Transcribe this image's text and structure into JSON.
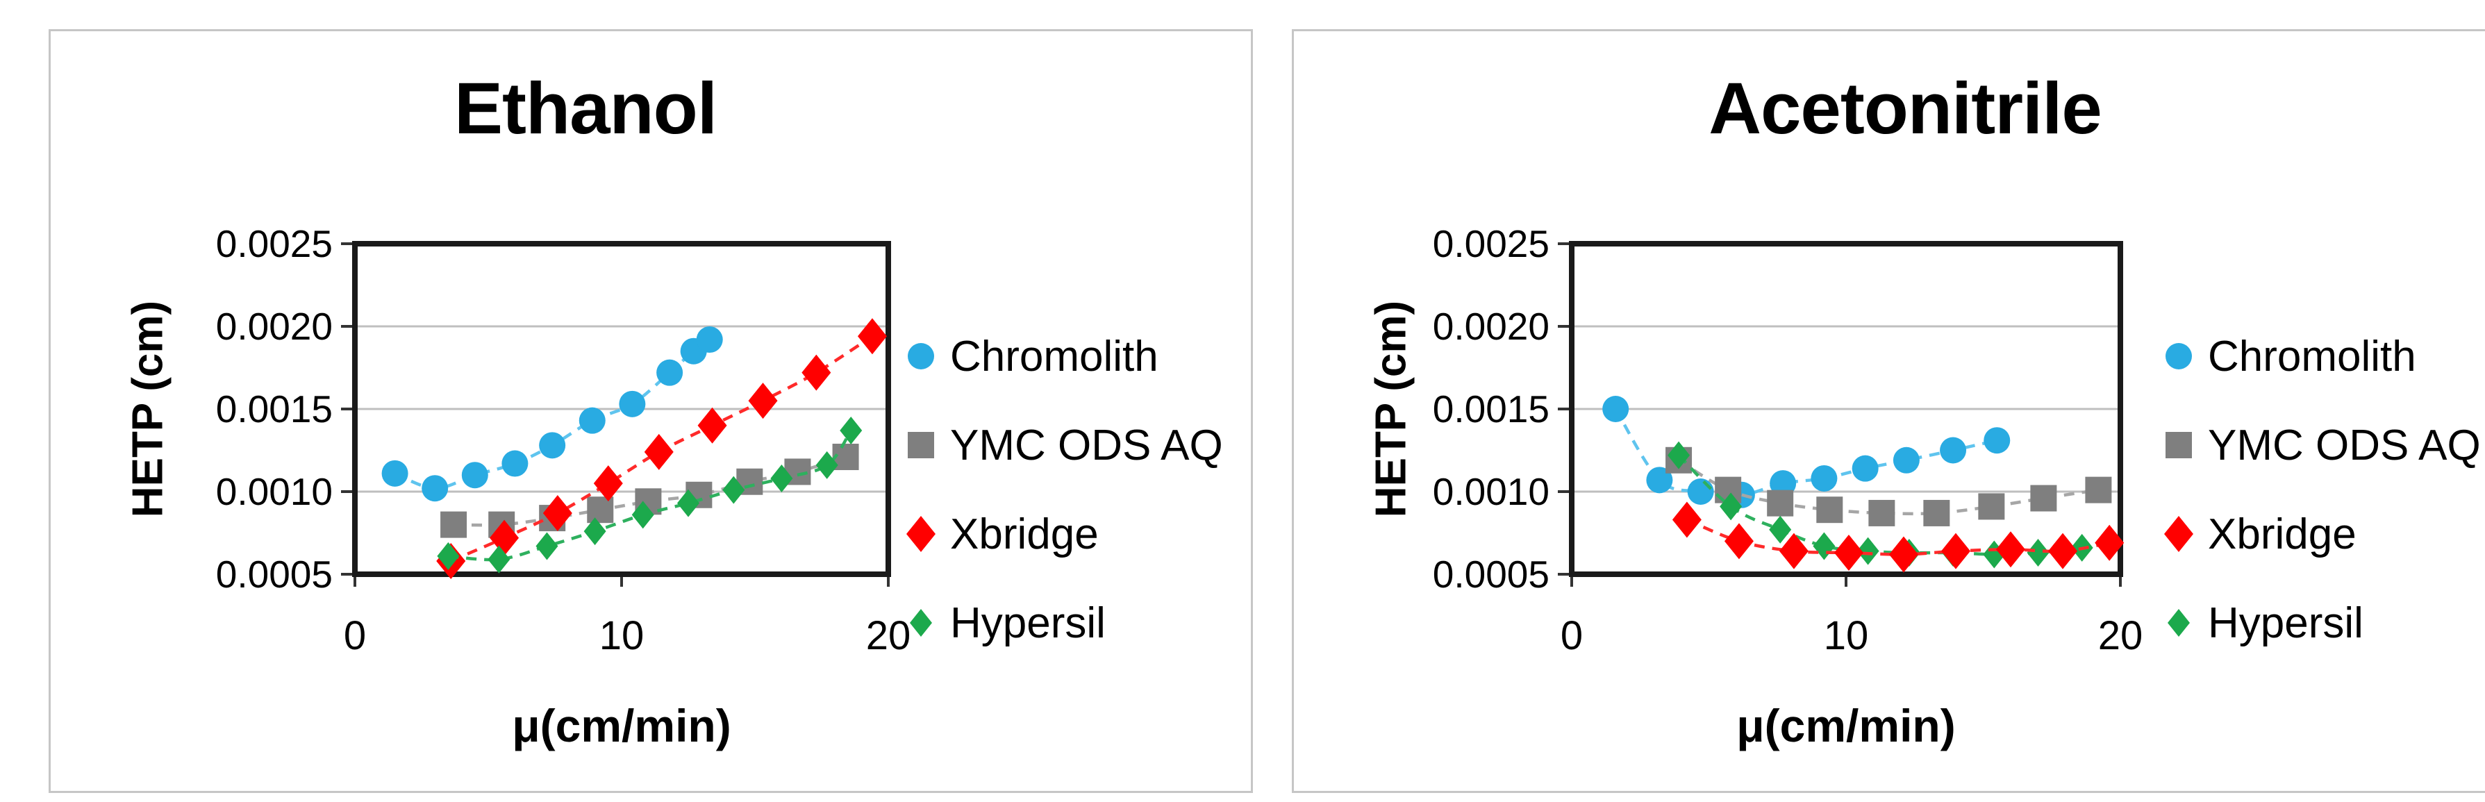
{
  "page": {
    "background": "#FFFFFF",
    "panel_border_color": "#C6C6C6",
    "plot_border_color": "#1A1A1A",
    "gridline_color": "#BFBFBF"
  },
  "chart_data": [
    {
      "type": "scatter",
      "title": "Ethanol",
      "xlabel": "μ(cm/min)",
      "ylabel": "HETP (cm)",
      "xlim": [
        0,
        20
      ],
      "ylim": [
        0.0005,
        0.0025
      ],
      "xticks": [
        {
          "v": 0,
          "label": "0"
        },
        {
          "v": 10,
          "label": "10"
        },
        {
          "v": 20,
          "label": "20"
        }
      ],
      "yticks": [
        {
          "v": 0.0005,
          "label": "0.0005"
        },
        {
          "v": 0.001,
          "label": "0.0010"
        },
        {
          "v": 0.0015,
          "label": "0.0015"
        },
        {
          "v": 0.002,
          "label": "0.0020"
        },
        {
          "v": 0.0025,
          "label": "0.0025"
        }
      ],
      "grid": "horizontal",
      "legend_position": "right",
      "series": [
        {
          "name": "Chromolith",
          "marker": "circle",
          "color": "#29ABE2",
          "line_color": "#5FC4EE",
          "line_style": "dashed",
          "points": [
            [
              1.5,
              0.00111
            ],
            [
              3.0,
              0.00102
            ],
            [
              4.5,
              0.0011
            ],
            [
              6.0,
              0.00117
            ],
            [
              7.4,
              0.00128
            ],
            [
              8.9,
              0.00143
            ],
            [
              10.4,
              0.00153
            ],
            [
              11.8,
              0.00172
            ],
            [
              12.7,
              0.00185
            ],
            [
              13.3,
              0.00192
            ]
          ]
        },
        {
          "name": "YMC ODS AQ",
          "marker": "square",
          "color": "#7F7F7F",
          "line_color": "#A6A6A6",
          "line_style": "dashed",
          "points": [
            [
              3.7,
              0.0008
            ],
            [
              5.5,
              0.0008
            ],
            [
              7.4,
              0.00084
            ],
            [
              9.2,
              0.00089
            ],
            [
              11.0,
              0.00094
            ],
            [
              12.9,
              0.00098
            ],
            [
              14.8,
              0.00106
            ],
            [
              16.6,
              0.00112
            ],
            [
              18.4,
              0.00121
            ]
          ]
        },
        {
          "name": "Xbridge",
          "marker": "diamond",
          "color": "#FF0000",
          "line_color": "#FF2A2A",
          "line_style": "dashed",
          "points": [
            [
              3.6,
              0.00058
            ],
            [
              5.6,
              0.00072
            ],
            [
              7.6,
              0.00087
            ],
            [
              9.5,
              0.00105
            ],
            [
              11.4,
              0.00124
            ],
            [
              13.4,
              0.0014
            ],
            [
              15.3,
              0.00155
            ],
            [
              17.3,
              0.00172
            ],
            [
              19.4,
              0.00194
            ]
          ]
        },
        {
          "name": "Hypersil",
          "marker": "diamond-small",
          "color": "#1CA94C",
          "line_color": "#2EB05E",
          "line_style": "dashed",
          "points": [
            [
              3.5,
              0.00061
            ],
            [
              5.4,
              0.00059
            ],
            [
              7.2,
              0.00067
            ],
            [
              9.0,
              0.00076
            ],
            [
              10.8,
              0.00086
            ],
            [
              12.5,
              0.00093
            ],
            [
              14.2,
              0.00101
            ],
            [
              16.0,
              0.00108
            ],
            [
              17.7,
              0.00116
            ],
            [
              18.6,
              0.00137
            ]
          ]
        }
      ]
    },
    {
      "type": "scatter",
      "title": "Acetonitrile",
      "xlabel": "μ(cm/min)",
      "ylabel": "HETP (cm)",
      "xlim": [
        0,
        20
      ],
      "ylim": [
        0.0005,
        0.0025
      ],
      "xticks": [
        {
          "v": 0,
          "label": "0"
        },
        {
          "v": 10,
          "label": "10"
        },
        {
          "v": 20,
          "label": "20"
        }
      ],
      "yticks": [
        {
          "v": 0.0005,
          "label": "0.0005"
        },
        {
          "v": 0.001,
          "label": "0.0010"
        },
        {
          "v": 0.0015,
          "label": "0.0015"
        },
        {
          "v": 0.002,
          "label": "0.0020"
        },
        {
          "v": 0.0025,
          "label": "0.0025"
        }
      ],
      "grid": "horizontal",
      "legend_position": "right",
      "series": [
        {
          "name": "Chromolith",
          "marker": "circle",
          "color": "#29ABE2",
          "line_color": "#5FC4EE",
          "line_style": "dashed",
          "points": [
            [
              1.6,
              0.0015
            ],
            [
              3.2,
              0.00107
            ],
            [
              4.7,
              0.001
            ],
            [
              6.2,
              0.00098
            ],
            [
              7.7,
              0.00105
            ],
            [
              9.2,
              0.00108
            ],
            [
              10.7,
              0.00114
            ],
            [
              12.2,
              0.00119
            ],
            [
              13.9,
              0.00125
            ],
            [
              15.5,
              0.00131
            ]
          ]
        },
        {
          "name": "YMC ODS AQ",
          "marker": "square",
          "color": "#7F7F7F",
          "line_color": "#A6A6A6",
          "line_style": "dashed",
          "points": [
            [
              3.9,
              0.00119
            ],
            [
              5.7,
              0.00101
            ],
            [
              7.6,
              0.00093
            ],
            [
              9.4,
              0.00089
            ],
            [
              11.3,
              0.00087
            ],
            [
              13.3,
              0.00087
            ],
            [
              15.3,
              0.00091
            ],
            [
              17.2,
              0.00096
            ],
            [
              19.2,
              0.00101
            ]
          ]
        },
        {
          "name": "Xbridge",
          "marker": "diamond",
          "color": "#FF0000",
          "line_color": "#FF2A2A",
          "line_style": "dashed",
          "points": [
            [
              4.2,
              0.00083
            ],
            [
              6.1,
              0.0007
            ],
            [
              8.1,
              0.00064
            ],
            [
              10.1,
              0.00063
            ],
            [
              12.1,
              0.00062
            ],
            [
              14.0,
              0.00064
            ],
            [
              16.0,
              0.00065
            ],
            [
              17.9,
              0.00064
            ],
            [
              19.6,
              0.00069
            ]
          ]
        },
        {
          "name": "Hypersil",
          "marker": "diamond-small",
          "color": "#1CA94C",
          "line_color": "#2EB05E",
          "line_style": "dashed",
          "points": [
            [
              3.9,
              0.00122
            ],
            [
              5.8,
              0.00091
            ],
            [
              7.6,
              0.00077
            ],
            [
              9.2,
              0.00067
            ],
            [
              10.8,
              0.00064
            ],
            [
              12.3,
              0.00063
            ],
            [
              13.9,
              0.00063
            ],
            [
              15.4,
              0.00062
            ],
            [
              17.0,
              0.00063
            ],
            [
              18.6,
              0.00066
            ]
          ]
        }
      ]
    }
  ]
}
